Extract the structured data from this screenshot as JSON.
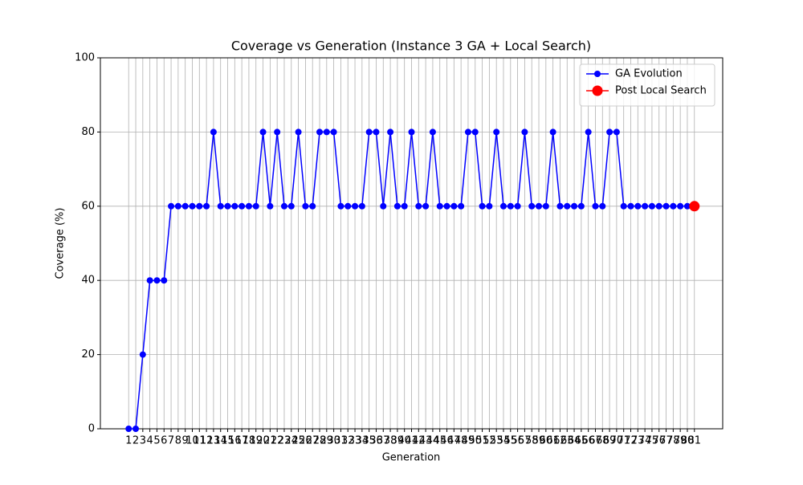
{
  "chart_data": {
    "type": "line",
    "title": "Coverage vs Generation (Instance 3 GA + Local Search)",
    "xlabel": "Generation",
    "ylabel": "Coverage (%)",
    "series": [
      {
        "name": "GA Evolution",
        "color": "#0000ff",
        "marker": "circle",
        "marker_size": 4,
        "x": [
          1,
          2,
          3,
          4,
          5,
          6,
          7,
          8,
          9,
          10,
          11,
          12,
          13,
          14,
          15,
          16,
          17,
          18,
          19,
          20,
          21,
          22,
          23,
          24,
          25,
          26,
          27,
          28,
          29,
          30,
          31,
          32,
          33,
          34,
          35,
          36,
          37,
          38,
          39,
          40,
          41,
          42,
          43,
          44,
          45,
          46,
          47,
          48,
          49,
          50,
          51,
          52,
          53,
          54,
          55,
          56,
          57,
          58,
          59,
          60,
          61,
          62,
          63,
          64,
          65,
          66,
          67,
          68,
          69,
          70,
          71,
          72,
          73,
          74,
          75,
          76,
          77,
          78,
          79,
          80
        ],
        "values": [
          0,
          0,
          20,
          40,
          40,
          40,
          60,
          60,
          60,
          60,
          60,
          60,
          80,
          60,
          60,
          60,
          60,
          60,
          60,
          80,
          60,
          80,
          60,
          60,
          80,
          60,
          60,
          80,
          80,
          80,
          60,
          60,
          60,
          60,
          80,
          80,
          60,
          80,
          60,
          60,
          80,
          60,
          60,
          80,
          60,
          60,
          60,
          60,
          80,
          80,
          60,
          60,
          80,
          60,
          60,
          60,
          80,
          60,
          60,
          60,
          80,
          60,
          60,
          60,
          60,
          80,
          60,
          60,
          80,
          80,
          60,
          60,
          60,
          60,
          60,
          60,
          60,
          60,
          60,
          60
        ]
      },
      {
        "name": "Post Local Search",
        "color": "#ff0000",
        "marker": "circle",
        "marker_size": 6.5,
        "x": [
          81
        ],
        "values": [
          60
        ]
      }
    ],
    "xlim": [
      -3,
      85
    ],
    "xticks": [
      1,
      2,
      3,
      4,
      5,
      6,
      7,
      8,
      9,
      10,
      11,
      12,
      13,
      14,
      15,
      16,
      17,
      18,
      19,
      20,
      21,
      22,
      23,
      24,
      25,
      26,
      27,
      28,
      29,
      30,
      31,
      32,
      33,
      34,
      35,
      36,
      37,
      38,
      39,
      40,
      41,
      42,
      43,
      44,
      45,
      46,
      47,
      48,
      49,
      50,
      51,
      52,
      53,
      54,
      55,
      56,
      57,
      58,
      59,
      60,
      61,
      62,
      63,
      64,
      65,
      66,
      67,
      68,
      69,
      70,
      71,
      72,
      73,
      74,
      75,
      76,
      77,
      78,
      79,
      80,
      81
    ],
    "ylim": [
      0,
      100
    ],
    "yticks": [
      0,
      20,
      40,
      60,
      80,
      100
    ],
    "grid": true,
    "legend": "upper right"
  }
}
